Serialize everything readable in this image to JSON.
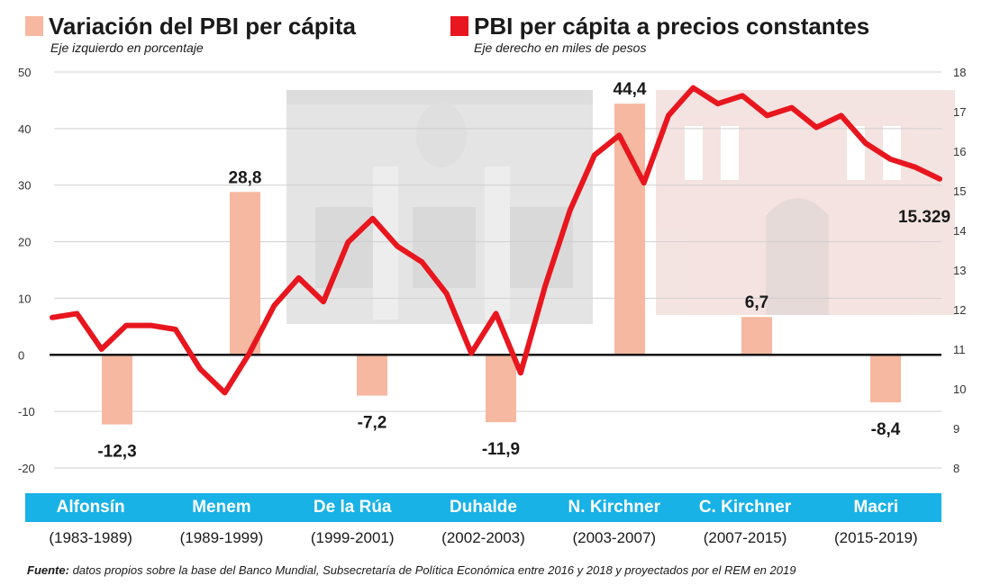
{
  "legend": {
    "left": {
      "title": "Variación del PBI per cápita",
      "subtitle": "Eje izquierdo en porcentaje",
      "color": "#f6b8a0"
    },
    "right": {
      "title": "PBI per cápita a precios constantes",
      "subtitle": "Eje derecho en miles de pesos",
      "color": "#e8161e"
    }
  },
  "colors": {
    "bar": "#f6b8a0",
    "line": "#e8161e",
    "band": "#19b2e6"
  },
  "chart_data": {
    "type": "bar+line",
    "left_axis": {
      "label": "Eje izquierdo en porcentaje",
      "ylim": [
        -20,
        50
      ],
      "ticks": [
        "50",
        "40",
        "30",
        "20",
        "10",
        "0",
        "-10",
        "-20"
      ]
    },
    "right_axis": {
      "label": "Eje derecho en miles de pesos",
      "ylim": [
        8,
        18
      ],
      "ticks": [
        "18",
        "17",
        "16",
        "15",
        "14",
        "13",
        "12",
        "11",
        "10",
        "9",
        "8"
      ]
    },
    "categories": [
      "Alfonsín",
      "Menem",
      "De la Rúa",
      "Duhalde",
      "N. Kirchner",
      "C. Kirchner",
      "Macri"
    ],
    "periods": [
      "(1983-1989)",
      "(1989-1999)",
      "(1999-2001)",
      "(2002-2003)",
      "(2003-2007)",
      "(2007-2015)",
      "(2015-2019)"
    ],
    "bars": {
      "name": "Variación del PBI per cápita",
      "values": [
        -12.3,
        28.8,
        -7.2,
        -11.9,
        44.4,
        6.7,
        -8.4
      ],
      "labels": [
        "-12,3",
        "28,8",
        "-7,2",
        "-11,9",
        "44,4",
        "6,7",
        "-8,4"
      ]
    },
    "line": {
      "name": "PBI per cápita a precios constantes",
      "x": [
        1983,
        1984,
        1985,
        1986,
        1987,
        1988,
        1989,
        1990,
        1991,
        1992,
        1993,
        1994,
        1995,
        1996,
        1997,
        1998,
        1999,
        2000,
        2001,
        2002,
        2003,
        2004,
        2005,
        2006,
        2007,
        2008,
        2009,
        2010,
        2011,
        2012,
        2013,
        2014,
        2015,
        2016,
        2017,
        2018,
        2019
      ],
      "y": [
        11.8,
        11.9,
        11.0,
        11.6,
        11.6,
        11.5,
        10.5,
        9.9,
        10.9,
        12.1,
        12.8,
        12.2,
        13.7,
        14.3,
        13.6,
        13.2,
        12.4,
        10.9,
        11.9,
        10.4,
        12.6,
        14.5,
        15.9,
        16.4,
        15.2,
        16.9,
        17.6,
        17.2,
        17.4,
        16.9,
        17.1,
        16.6,
        16.9,
        16.2,
        15.8,
        15.6,
        15.3
      ],
      "end_label": "15.329"
    },
    "grid": true
  },
  "source": {
    "label": "Fuente:",
    "text": "datos propios sobre la base del Banco Mundial, Subsecretaría de Política Económica entre 2016 y 2018 y proyectados por el REM en 2019"
  }
}
